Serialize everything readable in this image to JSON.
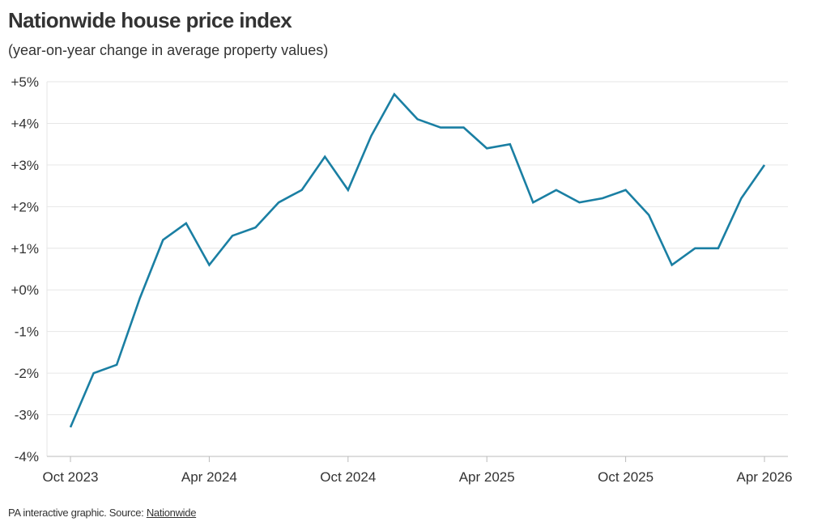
{
  "header": {
    "title": "Nationwide house price index",
    "subtitle": "(year-on-year change in average property values)"
  },
  "footer": {
    "text": "PA interactive graphic. Source: ",
    "source_link": "Nationwide"
  },
  "colors": {
    "line": "#1a7fa3",
    "grid": "#e6e6e6",
    "axis": "#bbbbbb",
    "text": "#333333"
  },
  "chart_data": {
    "type": "line",
    "title": "Nationwide house price index",
    "subtitle": "(year-on-year change in average property values)",
    "xlabel": "",
    "ylabel": "",
    "ylim": [
      -4,
      5
    ],
    "y_ticks": [
      {
        "value": 5,
        "label": "+5%"
      },
      {
        "value": 4,
        "label": "+4%"
      },
      {
        "value": 3,
        "label": "+3%"
      },
      {
        "value": 2,
        "label": "+2%"
      },
      {
        "value": 1,
        "label": "+1%"
      },
      {
        "value": 0,
        "label": "+0%"
      },
      {
        "value": -1,
        "label": "-1%"
      },
      {
        "value": -2,
        "label": "-2%"
      },
      {
        "value": -3,
        "label": "-3%"
      },
      {
        "value": -4,
        "label": "-4%"
      }
    ],
    "x_ticks": [
      {
        "date": "2023-10",
        "label": "Oct 2023"
      },
      {
        "date": "2024-04",
        "label": "Apr 2024"
      },
      {
        "date": "2024-10",
        "label": "Oct 2024"
      },
      {
        "date": "2025-04",
        "label": "Apr 2025"
      },
      {
        "date": "2025-10",
        "label": "Oct 2025"
      },
      {
        "date": "2026-04",
        "label": "Apr 2026"
      }
    ],
    "grid": true,
    "legend": "none",
    "series": [
      {
        "x": [
          "2023-10",
          "2023-11",
          "2023-12",
          "2024-01",
          "2024-02",
          "2024-03",
          "2024-04",
          "2024-05",
          "2024-06",
          "2024-07",
          "2024-08",
          "2024-09",
          "2024-10",
          "2024-11",
          "2024-12",
          "2025-01",
          "2025-02",
          "2025-03",
          "2025-04",
          "2025-05",
          "2025-06",
          "2025-07",
          "2025-08",
          "2025-09",
          "2025-10",
          "2025-11",
          "2025-12",
          "2026-01",
          "2026-02",
          "2026-03",
          "2026-04"
        ],
        "values": [
          -3.3,
          -2.0,
          -1.8,
          -0.2,
          1.2,
          1.6,
          0.6,
          1.3,
          1.5,
          2.1,
          2.4,
          3.2,
          2.4,
          3.7,
          4.7,
          4.1,
          3.9,
          3.9,
          3.4,
          3.5,
          2.1,
          2.4,
          2.1,
          2.2,
          2.4,
          1.8,
          0.6,
          1.0,
          1.0,
          2.2,
          3.0
        ]
      }
    ]
  }
}
